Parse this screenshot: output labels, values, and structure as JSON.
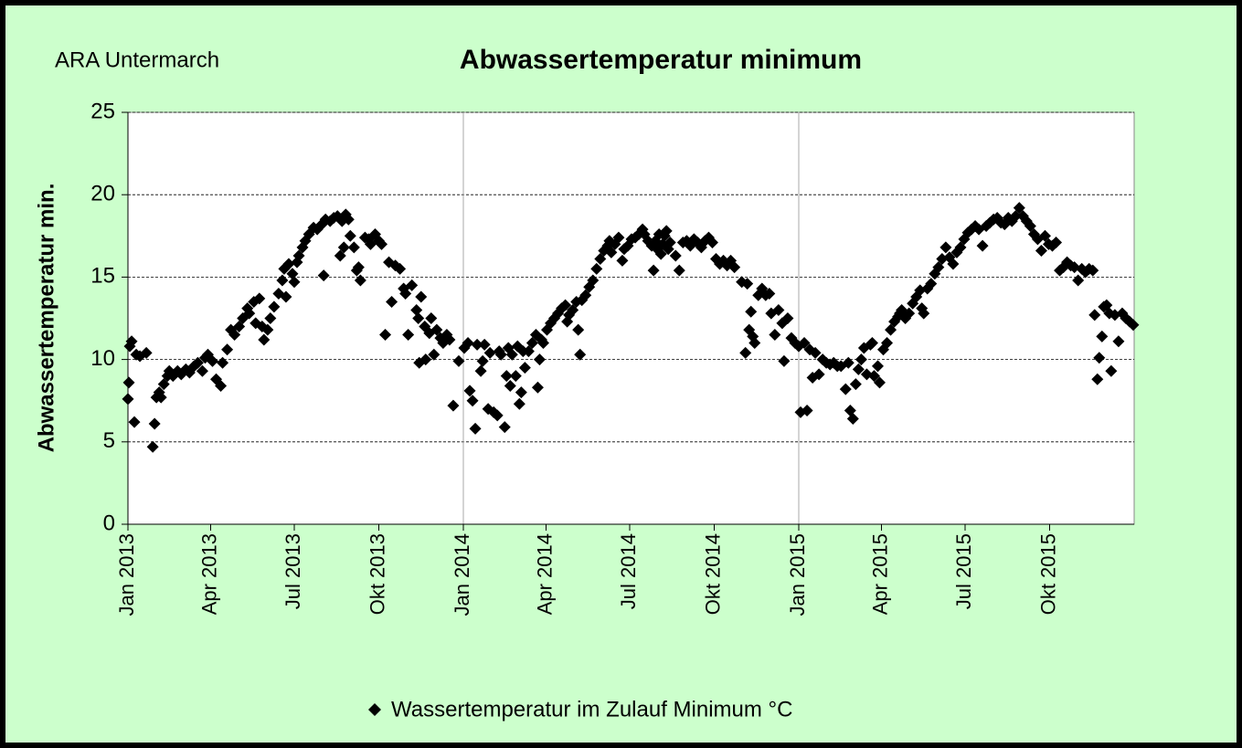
{
  "chart_data": {
    "type": "scatter",
    "title": "Abwassertemperatur minimum",
    "subtitle": "ARA Untermarch",
    "y_label": "Abwassertemperatur min.",
    "xlim": [
      0,
      1095
    ],
    "xticks": [
      {
        "value": 0,
        "label": "Jan 2013"
      },
      {
        "value": 90,
        "label": "Apr 2013"
      },
      {
        "value": 181,
        "label": "Jul 2013"
      },
      {
        "value": 273,
        "label": "Okt 2013"
      },
      {
        "value": 365,
        "label": "Jan 2014"
      },
      {
        "value": 455,
        "label": "Apr 2014"
      },
      {
        "value": 546,
        "label": "Jul 2014"
      },
      {
        "value": 638,
        "label": "Okt 2014"
      },
      {
        "value": 730,
        "label": "Jan 2015"
      },
      {
        "value": 820,
        "label": "Apr 2015"
      },
      {
        "value": 911,
        "label": "Jul 2015"
      },
      {
        "value": 1003,
        "label": "Okt 2015"
      }
    ],
    "xgrid": [
      365,
      730
    ],
    "ylim": [
      0,
      25
    ],
    "yticks": [
      0,
      5,
      10,
      15,
      20,
      25
    ],
    "grid": true,
    "legend": "bottom",
    "x": [
      0,
      1,
      2,
      4,
      7,
      9,
      13,
      20,
      27,
      29,
      31,
      34,
      36,
      39,
      43,
      45,
      49,
      54,
      58,
      63,
      67,
      72,
      76,
      81,
      84,
      87,
      92,
      96,
      101,
      103,
      108,
      112,
      116,
      121,
      125,
      130,
      132,
      137,
      139,
      143,
      146,
      148,
      152,
      155,
      159,
      164,
      168,
      170,
      172,
      175,
      179,
      181,
      184,
      186,
      190,
      193,
      197,
      202,
      206,
      211,
      213,
      215,
      220,
      224,
      228,
      231,
      233,
      235,
      237,
      240,
      242,
      246,
      249,
      251,
      253,
      258,
      262,
      264,
      269,
      273,
      276,
      280,
      284,
      287,
      291,
      296,
      300,
      302,
      305,
      309,
      314,
      316,
      317,
      319,
      323,
      324,
      328,
      330,
      333,
      336,
      340,
      343,
      347,
      350,
      354,
      360,
      366,
      370,
      372,
      375,
      378,
      380,
      384,
      386,
      388,
      392,
      394,
      398,
      402,
      404,
      406,
      410,
      412,
      414,
      416,
      418,
      422,
      424,
      426,
      428,
      430,
      432,
      436,
      440,
      444,
      446,
      448,
      450,
      452,
      456,
      460,
      464,
      468,
      472,
      476,
      478,
      480,
      484,
      488,
      490,
      492,
      494,
      498,
      502,
      506,
      510,
      514,
      518,
      522,
      524,
      526,
      530,
      534,
      538,
      540,
      544,
      548,
      552,
      556,
      560,
      562,
      566,
      570,
      572,
      574,
      576,
      578,
      580,
      582,
      584,
      586,
      588,
      590,
      596,
      600,
      604,
      608,
      612,
      616,
      620,
      624,
      628,
      632,
      636,
      640,
      644,
      648,
      652,
      656,
      660,
      668,
      672,
      674,
      676,
      678,
      680,
      682,
      686,
      690,
      694,
      698,
      700,
      704,
      708,
      712,
      714,
      718,
      722,
      726,
      730,
      732,
      736,
      739,
      742,
      745,
      748,
      752,
      756,
      760,
      764,
      768,
      772,
      776,
      781,
      784,
      786,
      789,
      792,
      795,
      798,
      801,
      804,
      808,
      810,
      812,
      816,
      818,
      822,
      826,
      830,
      834,
      838,
      840,
      842,
      846,
      850,
      854,
      858,
      862,
      864,
      866,
      870,
      874,
      878,
      882,
      886,
      890,
      894,
      898,
      902,
      906,
      910,
      914,
      918,
      922,
      926,
      930,
      934,
      938,
      942,
      946,
      950,
      954,
      958,
      962,
      966,
      970,
      974,
      978,
      982,
      986,
      990,
      994,
      998,
      1002,
      1006,
      1010,
      1014,
      1018,
      1022,
      1026,
      1030,
      1034,
      1038,
      1042,
      1046,
      1050,
      1052,
      1055,
      1057,
      1060,
      1062,
      1065,
      1068,
      1070,
      1074,
      1078,
      1082,
      1086,
      1090,
      1094
    ],
    "series": [
      {
        "name": "Wassertemperatur im Zulauf Minimum °C",
        "color": "#000000",
        "values": [
          7.6,
          8.6,
          10.8,
          11.1,
          6.2,
          10.3,
          10.2,
          10.4,
          4.7,
          6.1,
          7.7,
          8.0,
          7.7,
          8.5,
          9.0,
          9.3,
          9.0,
          9.3,
          9.1,
          9.4,
          9.2,
          9.6,
          9.8,
          9.3,
          10.1,
          10.3,
          9.9,
          8.8,
          8.4,
          9.8,
          10.6,
          11.8,
          11.5,
          12.0,
          12.5,
          13.1,
          12.8,
          13.5,
          12.2,
          13.7,
          12.0,
          11.2,
          11.8,
          12.5,
          13.2,
          14.0,
          14.8,
          15.5,
          13.8,
          15.8,
          15.2,
          14.7,
          15.9,
          16.3,
          16.8,
          17.2,
          17.6,
          18.0,
          17.9,
          18.2,
          15.1,
          18.5,
          18.4,
          18.6,
          18.7,
          16.3,
          18.4,
          16.8,
          18.8,
          18.5,
          17.5,
          16.8,
          15.4,
          15.6,
          14.8,
          17.4,
          17.3,
          17.0,
          17.6,
          17.2,
          17.0,
          11.5,
          15.9,
          13.5,
          15.7,
          15.5,
          14.3,
          14.0,
          11.5,
          14.5,
          13.0,
          12.5,
          9.8,
          13.8,
          12.0,
          10.0,
          11.6,
          12.5,
          10.3,
          11.8,
          11.3,
          11.0,
          11.5,
          11.2,
          7.2,
          9.9,
          10.7,
          11.0,
          8.1,
          7.5,
          5.8,
          10.9,
          9.3,
          9.9,
          10.9,
          7.0,
          10.4,
          6.8,
          6.6,
          10.5,
          10.3,
          5.9,
          9.0,
          10.7,
          8.4,
          10.3,
          9.0,
          10.8,
          7.3,
          8.0,
          10.5,
          9.5,
          10.5,
          11.0,
          11.5,
          8.3,
          10.0,
          11.2,
          11.0,
          11.8,
          12.2,
          12.5,
          12.8,
          13.1,
          13.3,
          12.3,
          12.7,
          13.0,
          13.5,
          11.8,
          10.3,
          13.6,
          13.9,
          14.4,
          14.8,
          15.5,
          16.1,
          16.6,
          16.9,
          17.2,
          16.5,
          17.0,
          17.4,
          16.0,
          16.7,
          16.9,
          17.3,
          17.4,
          17.6,
          17.9,
          17.6,
          17.2,
          16.9,
          15.4,
          17.2,
          16.7,
          17.6,
          16.4,
          17.0,
          17.5,
          17.8,
          16.7,
          17.1,
          16.3,
          15.4,
          17.1,
          17.2,
          16.9,
          17.3,
          17.1,
          16.8,
          17.2,
          17.4,
          17.1,
          16.1,
          15.8,
          16.0,
          15.7,
          16.0,
          15.6,
          14.7,
          10.4,
          14.6,
          11.8,
          12.9,
          11.4,
          11.0,
          13.9,
          14.3,
          13.9,
          14.0,
          12.8,
          11.5,
          13.0,
          12.2,
          9.9,
          12.5,
          11.3,
          11.0,
          10.8,
          6.8,
          11.0,
          6.9,
          10.6,
          8.9,
          10.4,
          9.1,
          10.0,
          9.8,
          9.7,
          9.8,
          9.6,
          9.6,
          8.2,
          9.8,
          6.9,
          6.4,
          8.5,
          9.4,
          10.0,
          10.7,
          9.1,
          10.9,
          11.0,
          9.0,
          9.6,
          8.6,
          10.6,
          11.0,
          11.8,
          12.3,
          12.6,
          12.8,
          13.0,
          12.5,
          12.8,
          13.4,
          13.8,
          14.2,
          13.1,
          12.8,
          14.3,
          14.6,
          15.2,
          15.6,
          16.1,
          16.8,
          16.2,
          15.8,
          16.5,
          16.8,
          17.3,
          17.7,
          17.9,
          18.1,
          17.9,
          16.9,
          18.1,
          18.3,
          18.5,
          18.6,
          18.3,
          18.2,
          18.6,
          18.4,
          18.7,
          19.2,
          18.7,
          18.4,
          18.1,
          17.6,
          17.3,
          16.6,
          17.5,
          17.0,
          16.9,
          17.1,
          15.4,
          15.6,
          15.9,
          15.7,
          15.6,
          14.8,
          15.5,
          15.3,
          15.5,
          15.4,
          12.7,
          8.8,
          10.1,
          11.4,
          13.2,
          13.3,
          12.8,
          9.3,
          12.7,
          11.1,
          12.8,
          12.5,
          12.3,
          12.1
        ]
      }
    ]
  }
}
